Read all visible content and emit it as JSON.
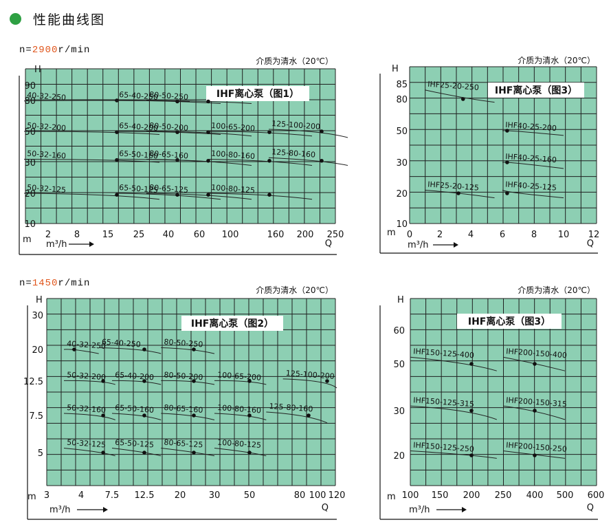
{
  "header": {
    "title": "性能曲线图",
    "accent": "#2ea043"
  },
  "rpm_labels": [
    {
      "prefix": "n=",
      "value": "2900",
      "suffix": "r/min"
    },
    {
      "prefix": "n=",
      "value": "1450",
      "suffix": "r/min"
    }
  ],
  "colors": {
    "plot_bg": "#8dcfb3",
    "grid": "#1f1f1f",
    "rpm_accent": "#e0551b"
  },
  "chart_data": [
    {
      "type": "line",
      "title": "IHF离心泵（图1）",
      "medium": "介质为清水（20℃）",
      "ylabel": "H",
      "yunit": "m",
      "xlabel": "Q",
      "xunit": "m³/h",
      "x_ticks": [
        "2",
        "8",
        "15",
        "25",
        "40",
        "60",
        "100",
        "160",
        "200",
        "250"
      ],
      "y_ticks": [
        "90",
        "80",
        "50",
        "30",
        "20",
        "10"
      ],
      "series": [
        {
          "name": "40-32-250",
          "label_xy": [
            2,
            80
          ],
          "x": [
            0,
            2,
            4
          ],
          "y": [
            79.5,
            80,
            79
          ]
        },
        {
          "name": "65-40-250",
          "label_xy": [
            4,
            80
          ],
          "x": [
            3,
            4,
            5
          ],
          "y": [
            80,
            79,
            77
          ]
        },
        {
          "name": "80-50-250",
          "label_xy": [
            5,
            80
          ],
          "x": [
            4,
            5,
            6
          ],
          "y": [
            80,
            79,
            77
          ]
        },
        {
          "name": "50-32-200",
          "label_xy": [
            2,
            50
          ],
          "x": [
            0,
            2,
            3
          ],
          "y": [
            50,
            49.5,
            48
          ]
        },
        {
          "name": "65-40-200",
          "label_xy": [
            4,
            50
          ],
          "x": [
            3,
            4,
            5
          ],
          "y": [
            50,
            49.5,
            48
          ]
        },
        {
          "name": "80-50-200",
          "label_xy": [
            5,
            50
          ],
          "x": [
            4,
            5,
            6
          ],
          "y": [
            50,
            49.5,
            47
          ]
        },
        {
          "name": "100-65-200",
          "label_xy": [
            7,
            50
          ],
          "x": [
            6,
            7,
            8
          ],
          "y": [
            50,
            49.5,
            47
          ]
        },
        {
          "name": "125-100-200",
          "label_xy": [
            9.5,
            52
          ],
          "x": [
            8,
            9,
            10
          ],
          "y": [
            52,
            50,
            46
          ]
        },
        {
          "name": "50-32-160",
          "label_xy": [
            2,
            32
          ],
          "x": [
            0,
            2,
            3
          ],
          "y": [
            32,
            31.5,
            30
          ]
        },
        {
          "name": "65-50-160",
          "label_xy": [
            4,
            32
          ],
          "x": [
            3,
            4,
            5
          ],
          "y": [
            32,
            31.5,
            30
          ]
        },
        {
          "name": "80-65-160",
          "label_xy": [
            5,
            32
          ],
          "x": [
            4,
            5,
            6
          ],
          "y": [
            32,
            31,
            29
          ]
        },
        {
          "name": "100-80-160",
          "label_xy": [
            7,
            32
          ],
          "x": [
            6,
            7,
            8
          ],
          "y": [
            32,
            31,
            29
          ]
        },
        {
          "name": "125-80-160",
          "label_xy": [
            9,
            32
          ],
          "x": [
            8,
            9,
            10
          ],
          "y": [
            33,
            31,
            29
          ]
        },
        {
          "name": "50-32-125",
          "label_xy": [
            2,
            20
          ],
          "x": [
            0,
            2,
            3
          ],
          "y": [
            20,
            19.5,
            18
          ]
        },
        {
          "name": "65-50-125",
          "label_xy": [
            4,
            20
          ],
          "x": [
            3,
            4,
            5
          ],
          "y": [
            20,
            19.5,
            18
          ]
        },
        {
          "name": "80-65-125",
          "label_xy": [
            5,
            20
          ],
          "x": [
            4,
            5,
            6
          ],
          "y": [
            20,
            19.5,
            18
          ]
        },
        {
          "name": "100-80-125",
          "label_xy": [
            7,
            20
          ],
          "x": [
            6,
            7,
            8
          ],
          "y": [
            20,
            19.5,
            18
          ]
        }
      ]
    },
    {
      "type": "line",
      "title": "IHF离心泵（图3）",
      "medium": "介质为清水（20℃）",
      "ylabel": "H",
      "yunit": "m",
      "xlabel": "Q",
      "xunit": "m³/h",
      "x_ticks": [
        "0",
        "2",
        "4",
        "6",
        "8",
        "10",
        "12"
      ],
      "y_ticks": [
        "85",
        "80",
        "50",
        "30",
        "20",
        "10"
      ],
      "series": [
        {
          "name": "IHF25-20-250",
          "x": [
            1,
            3.5,
            5.5
          ],
          "y": [
            83,
            80,
            77
          ]
        },
        {
          "name": "IHF40-25-200",
          "x": [
            6,
            6.3,
            10
          ],
          "y": [
            50,
            50,
            47
          ]
        },
        {
          "name": "IHF40-25-160",
          "x": [
            6,
            6.3,
            10
          ],
          "y": [
            30,
            30,
            28
          ]
        },
        {
          "name": "IHF25-20-125",
          "x": [
            1,
            3.2,
            5.5
          ],
          "y": [
            21,
            20,
            18.5
          ]
        },
        {
          "name": "IHF40-25-125",
          "x": [
            6,
            6.3,
            10
          ],
          "y": [
            21,
            20,
            18.5
          ]
        }
      ]
    },
    {
      "type": "line",
      "title": "IHF离心泵（图2）",
      "medium": "介质为清水（20℃）",
      "ylabel": "H",
      "yunit": "m",
      "xlabel": "Q",
      "xunit": "m³/h",
      "x_ticks": [
        "3",
        "4",
        "7.5",
        "12.5",
        "20",
        "30",
        "50",
        "80",
        "100",
        "120"
      ],
      "y_ticks": [
        "30",
        "20",
        "12.5",
        "7.5",
        "5"
      ],
      "series": [
        {
          "name": "40-32-250",
          "x": [
            3.5,
            3.8,
            6
          ],
          "y": [
            20,
            20,
            19
          ]
        },
        {
          "name": "65-40-250",
          "x": [
            6,
            12.5,
            16
          ],
          "y": [
            20.5,
            20,
            19
          ]
        },
        {
          "name": "80-50-250",
          "x": [
            16,
            24,
            30
          ],
          "y": [
            20.5,
            20,
            19
          ]
        },
        {
          "name": "50-32-200",
          "x": [
            3.5,
            6.5,
            8
          ],
          "y": [
            12.6,
            12.5,
            12
          ]
        },
        {
          "name": "65-40-200",
          "x": [
            7.5,
            12.5,
            16
          ],
          "y": [
            12.6,
            12.5,
            12
          ]
        },
        {
          "name": "80-50-200",
          "x": [
            16,
            24,
            30
          ],
          "y": [
            12.6,
            12.5,
            12
          ]
        },
        {
          "name": "100-65-200",
          "x": [
            30,
            50,
            60
          ],
          "y": [
            12.6,
            12.5,
            12
          ]
        },
        {
          "name": "125-100-200",
          "x": [
            70,
            110,
            120
          ],
          "y": [
            13,
            12.5,
            11.5
          ]
        },
        {
          "name": "50-32-160",
          "x": [
            3.5,
            6.5,
            8
          ],
          "y": [
            7.8,
            7.5,
            7.2
          ]
        },
        {
          "name": "65-50-160",
          "x": [
            7.5,
            12.5,
            16
          ],
          "y": [
            7.8,
            7.5,
            7.2
          ]
        },
        {
          "name": "80-65-160",
          "x": [
            16,
            24,
            30
          ],
          "y": [
            7.8,
            7.5,
            7.2
          ]
        },
        {
          "name": "100-80-160",
          "x": [
            30,
            50,
            60
          ],
          "y": [
            7.8,
            7.5,
            7.2
          ]
        },
        {
          "name": "125-80-160",
          "x": [
            60,
            90,
            110
          ],
          "y": [
            8,
            7.5,
            7
          ]
        },
        {
          "name": "50-32-125",
          "x": [
            3.5,
            6.5,
            8
          ],
          "y": [
            5.3,
            5,
            4.8
          ]
        },
        {
          "name": "65-50-125",
          "x": [
            7.5,
            12.5,
            16
          ],
          "y": [
            5.3,
            5,
            4.8
          ]
        },
        {
          "name": "80-65-125",
          "x": [
            16,
            24,
            30
          ],
          "y": [
            5.3,
            5,
            4.8
          ]
        },
        {
          "name": "100-80-125",
          "x": [
            30,
            50,
            60
          ],
          "y": [
            5.3,
            5,
            4.8
          ]
        }
      ]
    },
    {
      "type": "line",
      "title": "IHF离心泵（图3）",
      "medium": "介质为清水（20℃）",
      "ylabel": "H",
      "yunit": "m",
      "xlabel": "Q",
      "xunit": "m³/h",
      "x_ticks": [
        "100",
        "150",
        "200",
        "250",
        "400",
        "500",
        "600"
      ],
      "y_ticks": [
        "60",
        "50",
        "30",
        "20"
      ],
      "series": [
        {
          "name": "IHF150-125-400",
          "x": [
            100,
            200,
            240
          ],
          "y": [
            52,
            50,
            47
          ]
        },
        {
          "name": "IHF200-150-400",
          "x": [
            250,
            400,
            500
          ],
          "y": [
            52,
            50,
            47
          ]
        },
        {
          "name": "IHF150-125-315",
          "x": [
            100,
            200,
            240
          ],
          "y": [
            32,
            30,
            28
          ]
        },
        {
          "name": "IHF200-150-315",
          "x": [
            250,
            400,
            500
          ],
          "y": [
            32,
            30,
            28
          ]
        },
        {
          "name": "IHF150-125-250",
          "x": [
            100,
            200,
            240
          ],
          "y": [
            21,
            20,
            19
          ]
        },
        {
          "name": "IHF200-150-250",
          "x": [
            250,
            400,
            500
          ],
          "y": [
            21,
            20,
            19
          ]
        }
      ]
    }
  ]
}
